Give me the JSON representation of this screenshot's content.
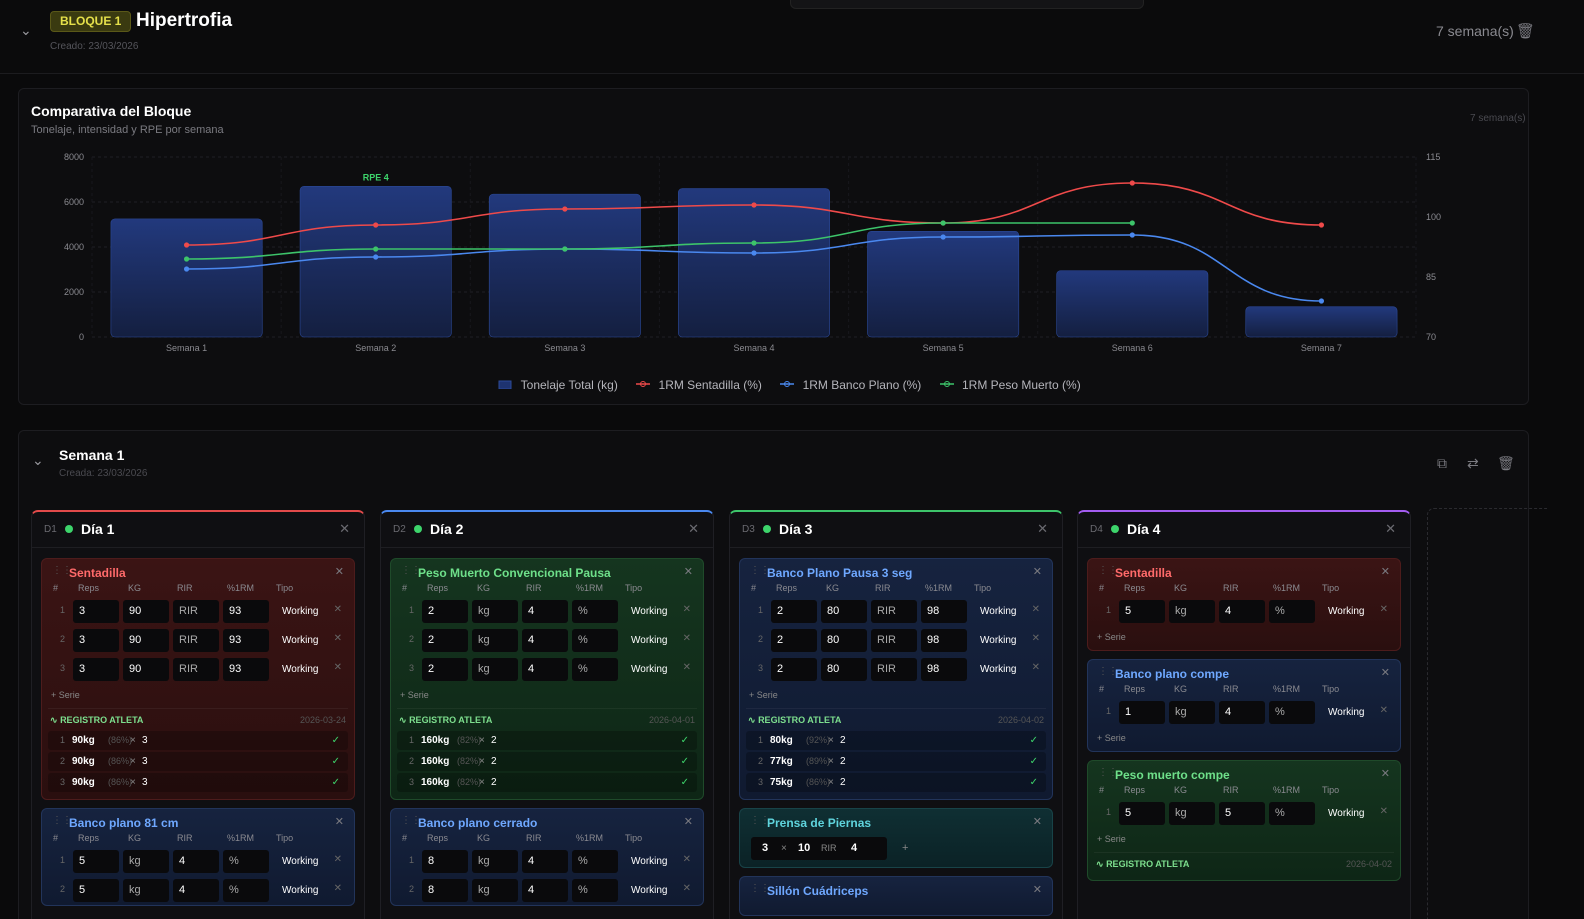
{
  "block": {
    "badge": "BLOQUE 1",
    "title": "Hipertrofia",
    "created": "Creado: 23/03/2026",
    "weeks": "7 semana(s)"
  },
  "chart": {
    "title": "Comparativa del Bloque",
    "subtitle": "Tonelaje, intensidad y RPE por semana",
    "weeks": "7 semana(s)",
    "annotation": "RPE 4"
  },
  "chart_data": {
    "type": "bar",
    "categories": [
      "Semana 1",
      "Semana 2",
      "Semana 3",
      "Semana 4",
      "Semana 5",
      "Semana 6",
      "Semana 7"
    ],
    "series": [
      {
        "name": "Tonelaje Total (kg)",
        "type": "bar",
        "axis": "left",
        "values": [
          5250,
          6700,
          6350,
          6600,
          4700,
          2950,
          1350
        ]
      },
      {
        "name": "1RM Sentadilla (%)",
        "type": "line",
        "axis": "right",
        "values": [
          93,
          98,
          102,
          103,
          98.5,
          108.5,
          98
        ]
      },
      {
        "name": "1RM Banco Plano (%)",
        "type": "line",
        "axis": "right",
        "values": [
          87,
          90,
          92,
          91,
          95,
          95.5,
          79
        ]
      },
      {
        "name": "1RM Peso Muerto (%)",
        "type": "line",
        "axis": "right",
        "values": [
          89.5,
          92,
          92,
          93.5,
          98.5,
          98.5,
          null
        ]
      }
    ],
    "yleft_ticks": [
      0,
      2000,
      4000,
      6000,
      8000
    ],
    "yright_ticks": [
      70,
      85,
      100,
      115
    ],
    "ylim_left": [
      0,
      8000
    ],
    "ylim_right": [
      70,
      115
    ],
    "colors": {
      "bar": "#1e3370",
      "sentadilla": "#ef4a4a",
      "banco": "#4a88ef",
      "peso": "#3dc46a"
    }
  },
  "week": {
    "title": "Semana 1",
    "created": "Creada: 23/03/2026"
  },
  "hdrs": [
    "#",
    "Reps",
    "KG",
    "RIR",
    "%1RM",
    "Tipo"
  ],
  "days": [
    {
      "code": "D1",
      "name": "Día 1",
      "color": "#e24a4a",
      "cards": [
        {
          "name": "Sentadilla",
          "theme": "red",
          "rows": [
            [
              "1",
              "3",
              "90",
              "RIR",
              "93",
              "Working"
            ],
            [
              "2",
              "3",
              "90",
              "RIR",
              "93",
              "Working"
            ],
            [
              "3",
              "3",
              "90",
              "RIR",
              "93",
              "Working"
            ]
          ],
          "add": "+ Serie",
          "reg": {
            "title": "REGISTRO ATLETA",
            "date": "2026-03-24",
            "rows": [
              [
                "1",
                "90kg",
                "(86%)",
                "×",
                "3",
                "✓"
              ],
              [
                "2",
                "90kg",
                "(86%)",
                "×",
                "3",
                "✓"
              ],
              [
                "3",
                "90kg",
                "(86%)",
                "×",
                "3",
                "✓"
              ]
            ]
          }
        },
        {
          "name": "Banco plano 81 cm",
          "theme": "blue",
          "rows": [
            [
              "1",
              "5",
              "kg",
              "4",
              "%",
              "Working"
            ],
            [
              "2",
              "5",
              "kg",
              "4",
              "%",
              "Working"
            ]
          ]
        }
      ]
    },
    {
      "code": "D2",
      "name": "Día 2",
      "color": "#4a88ef",
      "cards": [
        {
          "name": "Peso Muerto Convencional Pausa",
          "theme": "green",
          "rows": [
            [
              "1",
              "2",
              "kg",
              "4",
              "%",
              "Working"
            ],
            [
              "2",
              "2",
              "kg",
              "4",
              "%",
              "Working"
            ],
            [
              "3",
              "2",
              "kg",
              "4",
              "%",
              "Working"
            ]
          ],
          "add": "+ Serie",
          "reg": {
            "title": "REGISTRO ATLETA",
            "date": "2026-04-01",
            "rows": [
              [
                "1",
                "160kg",
                "(82%)",
                "×",
                "2",
                "✓"
              ],
              [
                "2",
                "160kg",
                "(82%)",
                "×",
                "2",
                "✓"
              ],
              [
                "3",
                "160kg",
                "(82%)",
                "×",
                "2",
                "✓"
              ]
            ]
          }
        },
        {
          "name": "Banco plano cerrado",
          "theme": "blue",
          "rows": [
            [
              "1",
              "8",
              "kg",
              "4",
              "%",
              "Working"
            ],
            [
              "2",
              "8",
              "kg",
              "4",
              "%",
              "Working"
            ]
          ]
        }
      ]
    },
    {
      "code": "D3",
      "name": "Día 3",
      "color": "#3dc46a",
      "cards": [
        {
          "name": "Banco Plano Pausa 3 seg",
          "theme": "blue",
          "rows": [
            [
              "1",
              "2",
              "80",
              "RIR",
              "98",
              "Working"
            ],
            [
              "2",
              "2",
              "80",
              "RIR",
              "98",
              "Working"
            ],
            [
              "3",
              "2",
              "80",
              "RIR",
              "98",
              "Working"
            ]
          ],
          "add": "+ Serie",
          "reg": {
            "title": "REGISTRO ATLETA",
            "date": "2026-04-02",
            "rows": [
              [
                "1",
                "80kg",
                "(92%)",
                "×",
                "2",
                "✓"
              ],
              [
                "2",
                "77kg",
                "(89%)",
                "×",
                "2",
                "✓"
              ],
              [
                "3",
                "75kg",
                "(86%)",
                "×",
                "2",
                "✓"
              ]
            ]
          }
        },
        {
          "name": "Prensa de Piernas",
          "theme": "teal",
          "compact": {
            "sets": "3",
            "x": "×",
            "reps": "10",
            "rir_label": "RIR",
            "rir": "4",
            "plus": "+"
          }
        },
        {
          "name": "Sillón Cuádriceps",
          "theme": "blue"
        }
      ]
    },
    {
      "code": "D4",
      "name": "Día 4",
      "color": "#a35cf0",
      "cards": [
        {
          "name": "Sentadilla",
          "theme": "red",
          "rows": [
            [
              "1",
              "5",
              "kg",
              "4",
              "%",
              "Working"
            ]
          ],
          "add": "+ Serie"
        },
        {
          "name": "Banco plano compe",
          "theme": "blue",
          "rows": [
            [
              "1",
              "1",
              "kg",
              "4",
              "%",
              "Working"
            ]
          ],
          "add": "+ Serie"
        },
        {
          "name": "Peso muerto compe",
          "theme": "green",
          "rows": [
            [
              "1",
              "5",
              "kg",
              "5",
              "%",
              "Working"
            ]
          ],
          "add": "+ Serie",
          "reg": {
            "title": "REGISTRO ATLETA",
            "date": "2026-04-02",
            "rows": []
          }
        }
      ]
    }
  ]
}
